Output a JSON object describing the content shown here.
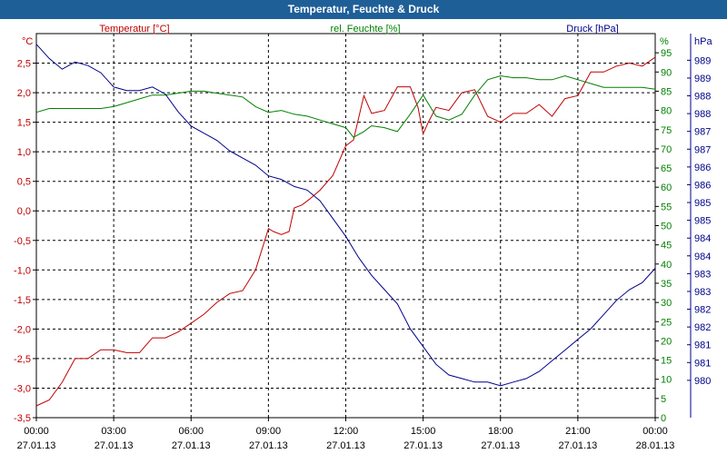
{
  "window": {
    "title": "Temperatur, Feuchte & Druck"
  },
  "chart_data": {
    "type": "line",
    "title": "Temperatur, Feuchte & Druck",
    "grid": true,
    "x": {
      "range": [
        0,
        24
      ],
      "ticks": [
        {
          "h": 0,
          "time": "00:00",
          "date": "27.01.13"
        },
        {
          "h": 3,
          "time": "03:00",
          "date": "27.01.13"
        },
        {
          "h": 6,
          "time": "06:00",
          "date": "27.01.13"
        },
        {
          "h": 9,
          "time": "09:00",
          "date": "27.01.13"
        },
        {
          "h": 12,
          "time": "12:00",
          "date": "27.01.13"
        },
        {
          "h": 15,
          "time": "15:00",
          "date": "27.01.13"
        },
        {
          "h": 18,
          "time": "18:00",
          "date": "27.01.13"
        },
        {
          "h": 21,
          "time": "21:00",
          "date": "27.01.13"
        },
        {
          "h": 24,
          "time": "00:00",
          "date": "28.01.13"
        }
      ]
    },
    "axes": {
      "temperature": {
        "unit": "°C",
        "label": "Temperatur [°C]",
        "color": "#c00000",
        "range": [
          -3.5,
          3.0
        ],
        "ticks": [
          {
            "v": 2.5,
            "label": "2,5"
          },
          {
            "v": 2.0,
            "label": "2,0"
          },
          {
            "v": 1.5,
            "label": "1,5"
          },
          {
            "v": 1.0,
            "label": "1,0"
          },
          {
            "v": 0.5,
            "label": "0,5"
          },
          {
            "v": 0.0,
            "label": "0,0"
          },
          {
            "v": -0.5,
            "label": "-0,5"
          },
          {
            "v": -1.0,
            "label": "-1,0"
          },
          {
            "v": -1.5,
            "label": "-1,5"
          },
          {
            "v": -2.0,
            "label": "-2,0"
          },
          {
            "v": -2.5,
            "label": "-2,5"
          },
          {
            "v": -3.0,
            "label": "-3,0"
          },
          {
            "v": -3.5,
            "label": "-3,5"
          }
        ]
      },
      "humidity": {
        "unit": "%",
        "label": "rel. Feuchte [%]",
        "color": "#008000",
        "range": [
          0,
          100
        ],
        "ticks": [
          {
            "v": 95,
            "label": "95"
          },
          {
            "v": 90,
            "label": "90"
          },
          {
            "v": 85,
            "label": "85"
          },
          {
            "v": 80,
            "label": "80"
          },
          {
            "v": 75,
            "label": "75"
          },
          {
            "v": 70,
            "label": "70"
          },
          {
            "v": 65,
            "label": "65"
          },
          {
            "v": 60,
            "label": "60"
          },
          {
            "v": 55,
            "label": "55"
          },
          {
            "v": 50,
            "label": "50"
          },
          {
            "v": 45,
            "label": "45"
          },
          {
            "v": 40,
            "label": "40"
          },
          {
            "v": 35,
            "label": "35"
          },
          {
            "v": 30,
            "label": "30"
          },
          {
            "v": 25,
            "label": "25"
          },
          {
            "v": 20,
            "label": "20"
          },
          {
            "v": 15,
            "label": "15"
          },
          {
            "v": 10,
            "label": "10"
          },
          {
            "v": 5,
            "label": "5"
          },
          {
            "v": 0,
            "label": "0"
          }
        ]
      },
      "pressure": {
        "unit": "hPa",
        "label": "Druck [hPa]",
        "color": "#00008b",
        "range": [
          979.2,
          990
        ],
        "ticks": [
          {
            "v": 989.25,
            "label": "989"
          },
          {
            "v": 988.75,
            "label": "989"
          },
          {
            "v": 988.25,
            "label": "988"
          },
          {
            "v": 987.75,
            "label": "988"
          },
          {
            "v": 987.25,
            "label": "987"
          },
          {
            "v": 986.75,
            "label": "987"
          },
          {
            "v": 986.25,
            "label": "986"
          },
          {
            "v": 985.75,
            "label": "986"
          },
          {
            "v": 985.25,
            "label": "985"
          },
          {
            "v": 984.75,
            "label": "985"
          },
          {
            "v": 984.25,
            "label": "984"
          },
          {
            "v": 983.75,
            "label": "984"
          },
          {
            "v": 983.25,
            "label": "983"
          },
          {
            "v": 982.75,
            "label": "983"
          },
          {
            "v": 982.25,
            "label": "982"
          },
          {
            "v": 981.75,
            "label": "982"
          },
          {
            "v": 981.25,
            "label": "981"
          },
          {
            "v": 980.75,
            "label": "981"
          },
          {
            "v": 980.25,
            "label": "980"
          }
        ]
      }
    },
    "series": [
      {
        "name": "Temperatur",
        "axis": "temperature",
        "color": "#c00000",
        "points": [
          [
            0,
            -3.3
          ],
          [
            0.5,
            -3.2
          ],
          [
            1.0,
            -2.9
          ],
          [
            1.5,
            -2.5
          ],
          [
            2.0,
            -2.5
          ],
          [
            2.5,
            -2.35
          ],
          [
            3.0,
            -2.35
          ],
          [
            3.5,
            -2.4
          ],
          [
            4.0,
            -2.4
          ],
          [
            4.5,
            -2.15
          ],
          [
            5.0,
            -2.15
          ],
          [
            5.5,
            -2.05
          ],
          [
            6.0,
            -1.9
          ],
          [
            6.5,
            -1.75
          ],
          [
            7.0,
            -1.55
          ],
          [
            7.5,
            -1.4
          ],
          [
            8.0,
            -1.35
          ],
          [
            8.5,
            -1.0
          ],
          [
            9.0,
            -0.3
          ],
          [
            9.2,
            -0.35
          ],
          [
            9.5,
            -0.4
          ],
          [
            9.8,
            -0.35
          ],
          [
            10.0,
            0.05
          ],
          [
            10.3,
            0.1
          ],
          [
            10.6,
            0.2
          ],
          [
            11.0,
            0.35
          ],
          [
            11.5,
            0.6
          ],
          [
            12.0,
            1.1
          ],
          [
            12.3,
            1.2
          ],
          [
            12.7,
            1.95
          ],
          [
            13.0,
            1.65
          ],
          [
            13.5,
            1.7
          ],
          [
            14.0,
            2.1
          ],
          [
            14.5,
            2.1
          ],
          [
            14.8,
            1.75
          ],
          [
            15.0,
            1.3
          ],
          [
            15.2,
            1.5
          ],
          [
            15.5,
            1.75
          ],
          [
            16.0,
            1.7
          ],
          [
            16.5,
            2.0
          ],
          [
            17.0,
            2.05
          ],
          [
            17.5,
            1.6
          ],
          [
            18.0,
            1.5
          ],
          [
            18.5,
            1.65
          ],
          [
            19.0,
            1.65
          ],
          [
            19.5,
            1.8
          ],
          [
            20.0,
            1.6
          ],
          [
            20.5,
            1.9
          ],
          [
            21.0,
            1.95
          ],
          [
            21.5,
            2.35
          ],
          [
            22.0,
            2.35
          ],
          [
            22.5,
            2.45
          ],
          [
            23.0,
            2.5
          ],
          [
            23.5,
            2.45
          ],
          [
            24.0,
            2.6
          ]
        ]
      },
      {
        "name": "rel. Feuchte",
        "axis": "humidity",
        "color": "#008000",
        "points": [
          [
            0,
            79.5
          ],
          [
            0.5,
            80.5
          ],
          [
            1.0,
            80.5
          ],
          [
            1.5,
            80.5
          ],
          [
            2.0,
            80.5
          ],
          [
            2.5,
            80.5
          ],
          [
            3.0,
            81.0
          ],
          [
            3.5,
            82.0
          ],
          [
            4.0,
            83.0
          ],
          [
            4.5,
            84.0
          ],
          [
            5.0,
            84.0
          ],
          [
            5.5,
            84.5
          ],
          [
            6.0,
            85.0
          ],
          [
            6.5,
            85.0
          ],
          [
            7.0,
            84.5
          ],
          [
            7.5,
            84.0
          ],
          [
            8.0,
            83.5
          ],
          [
            8.5,
            81.0
          ],
          [
            9.0,
            79.5
          ],
          [
            9.5,
            80.0
          ],
          [
            10.0,
            79.0
          ],
          [
            10.5,
            78.5
          ],
          [
            11.0,
            77.5
          ],
          [
            11.5,
            76.5
          ],
          [
            12.0,
            75.5
          ],
          [
            12.3,
            73.0
          ],
          [
            12.7,
            74.5
          ],
          [
            13.0,
            76.0
          ],
          [
            13.5,
            75.5
          ],
          [
            14.0,
            74.5
          ],
          [
            14.5,
            79.0
          ],
          [
            15.0,
            84.0
          ],
          [
            15.5,
            78.5
          ],
          [
            16.0,
            77.5
          ],
          [
            16.5,
            79.0
          ],
          [
            17.0,
            84.0
          ],
          [
            17.5,
            88.0
          ],
          [
            18.0,
            89.0
          ],
          [
            18.5,
            88.5
          ],
          [
            19.0,
            88.5
          ],
          [
            19.5,
            88.0
          ],
          [
            20.0,
            88.0
          ],
          [
            20.5,
            89.0
          ],
          [
            21.0,
            88.0
          ],
          [
            21.5,
            87.0
          ],
          [
            22.0,
            86.0
          ],
          [
            22.5,
            86.0
          ],
          [
            23.0,
            86.0
          ],
          [
            23.5,
            86.0
          ],
          [
            24.0,
            85.5
          ]
        ]
      },
      {
        "name": "Druck",
        "axis": "pressure",
        "color": "#00008b",
        "points": [
          [
            0,
            989.7
          ],
          [
            0.5,
            989.3
          ],
          [
            1.0,
            989.0
          ],
          [
            1.5,
            989.2
          ],
          [
            2.0,
            989.1
          ],
          [
            2.5,
            988.9
          ],
          [
            3.0,
            988.5
          ],
          [
            3.5,
            988.4
          ],
          [
            4.0,
            988.4
          ],
          [
            4.5,
            988.5
          ],
          [
            5.0,
            988.3
          ],
          [
            5.5,
            987.8
          ],
          [
            6.0,
            987.4
          ],
          [
            6.5,
            987.2
          ],
          [
            7.0,
            987.0
          ],
          [
            7.5,
            986.7
          ],
          [
            8.0,
            986.5
          ],
          [
            8.5,
            986.3
          ],
          [
            9.0,
            986.0
          ],
          [
            9.5,
            985.9
          ],
          [
            10.0,
            985.7
          ],
          [
            10.5,
            985.6
          ],
          [
            11.0,
            985.3
          ],
          [
            11.5,
            984.8
          ],
          [
            12.0,
            984.3
          ],
          [
            12.5,
            983.7
          ],
          [
            13.0,
            983.2
          ],
          [
            13.5,
            982.8
          ],
          [
            14.0,
            982.4
          ],
          [
            14.5,
            981.7
          ],
          [
            15.0,
            981.2
          ],
          [
            15.5,
            980.7
          ],
          [
            16.0,
            980.4
          ],
          [
            16.5,
            980.3
          ],
          [
            17.0,
            980.2
          ],
          [
            17.5,
            980.2
          ],
          [
            18.0,
            980.1
          ],
          [
            18.5,
            980.2
          ],
          [
            19.0,
            980.3
          ],
          [
            19.5,
            980.5
          ],
          [
            20.0,
            980.8
          ],
          [
            20.5,
            981.1
          ],
          [
            21.0,
            981.4
          ],
          [
            21.5,
            981.7
          ],
          [
            22.0,
            982.1
          ],
          [
            22.5,
            982.5
          ],
          [
            23.0,
            982.8
          ],
          [
            23.5,
            983.0
          ],
          [
            24.0,
            983.4
          ]
        ]
      }
    ]
  }
}
